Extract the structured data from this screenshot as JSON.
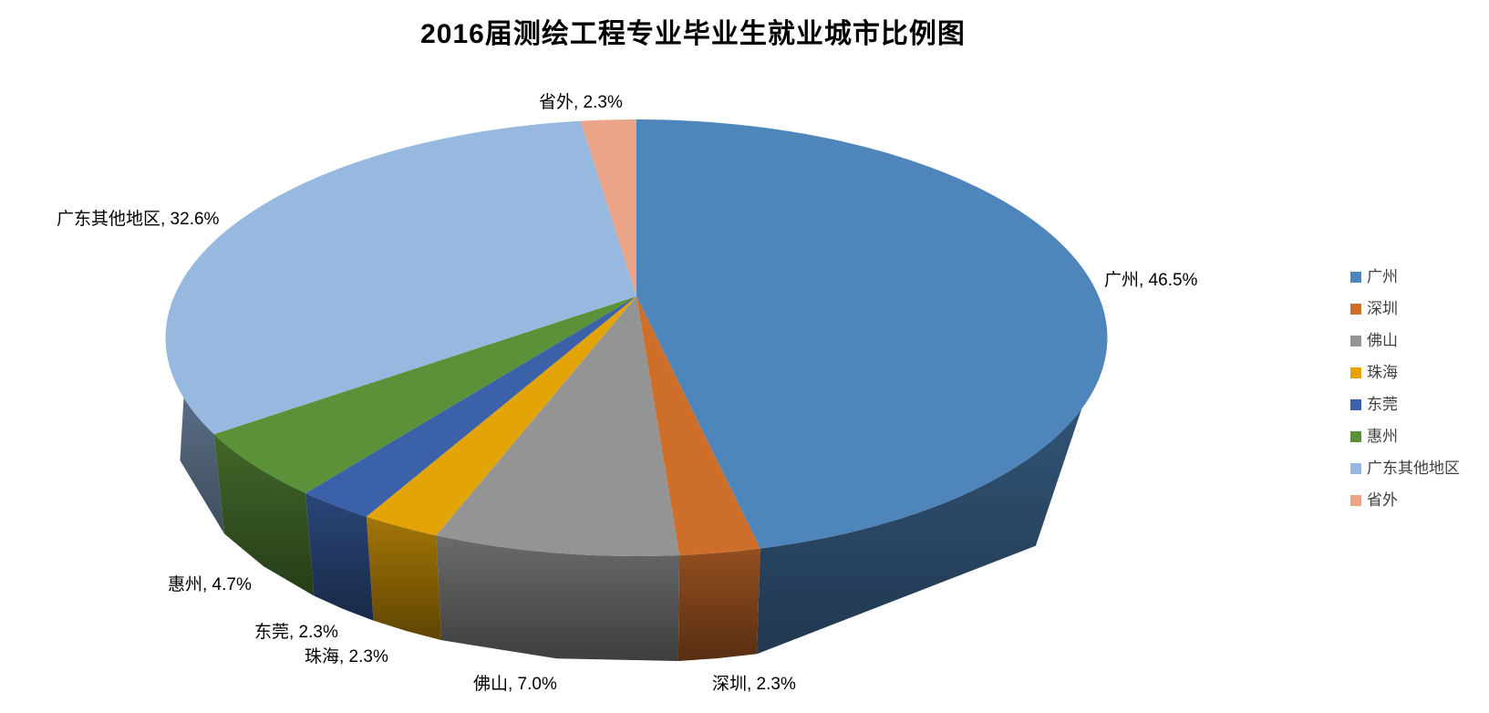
{
  "chart_data": {
    "type": "pie",
    "projection": "3d",
    "title": "2016届测绘工程专业毕业生就业城市比例图",
    "categories": [
      "广州",
      "深圳",
      "佛山",
      "珠海",
      "东莞",
      "惠州",
      "广东其他地区",
      "省外"
    ],
    "values": [
      46.5,
      2.3,
      7.0,
      2.3,
      2.3,
      4.7,
      32.6,
      2.3
    ],
    "value_unit": "%",
    "colors": [
      "#4E85BB",
      "#CE6E2B",
      "#949494",
      "#E3A408",
      "#3B62A8",
      "#5B9139",
      "#97B8DF",
      "#EAA487"
    ],
    "data_labels": [
      "广州, 46.5%",
      "深圳, 2.3%",
      "佛山, 7.0%",
      "珠海, 2.3%",
      "东莞, 2.3%",
      "惠州, 4.7%",
      "广东其他地区, 32.6%",
      "省外, 2.3%"
    ],
    "legend": {
      "position": "right",
      "entries": [
        "广州",
        "深圳",
        "佛山",
        "珠海",
        "东莞",
        "惠州",
        "广东其他地区",
        "省外"
      ]
    },
    "start_angle_deg": 0,
    "direction": "clockwise",
    "background": "#FFFFFF"
  }
}
